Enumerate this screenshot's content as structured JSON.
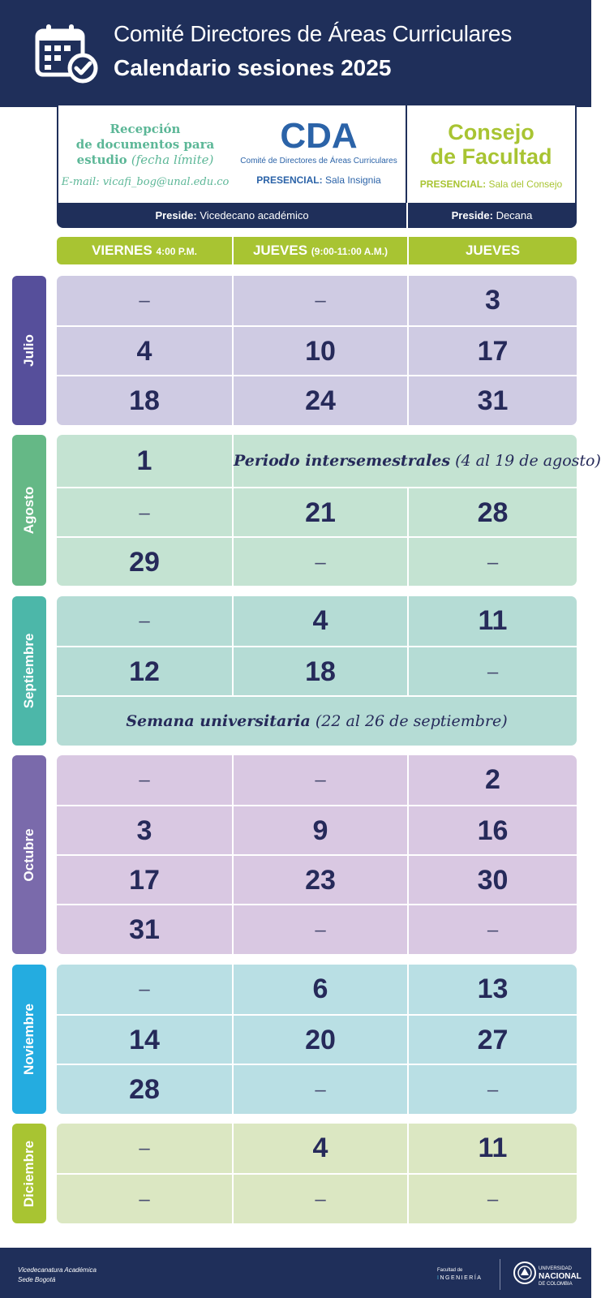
{
  "header": {
    "title": "Comité Directores de Áreas Curriculares",
    "subtitle": "Calendario sesiones 2025",
    "icon": "calendar-check-icon"
  },
  "info": {
    "reception": {
      "line1": "Recepción",
      "line2": "de documentos para",
      "line3_bold": "estudio",
      "line3_italic": "(fecha límite)",
      "email": "E-mail: vicafi_bog@unal.edu.co"
    },
    "cda": {
      "acronym": "CDA",
      "name": "Comité de Directores de Áreas Curriculares",
      "mode_label": "PRESENCIAL:",
      "place": "Sala Insignia"
    },
    "consejo": {
      "line1": "Consejo",
      "line2": "de Facultad",
      "mode_label": "PRESENCIAL:",
      "place": "Sala del Consejo"
    },
    "preside": {
      "label": "Preside:",
      "left": "Vicedecano académico",
      "right": "Decana"
    }
  },
  "columns": {
    "c1_main": "VIERNES",
    "c1_small": "4:00 P.M.",
    "c2_main": "JUEVES",
    "c2_small": "(9:00-11:00 A.M.)",
    "c3_main": "JUEVES"
  },
  "months": [
    {
      "name": "Julio",
      "rows": [
        [
          "–",
          "–",
          "3"
        ],
        [
          "4",
          "10",
          "17"
        ],
        [
          "18",
          "24",
          "31"
        ]
      ]
    },
    {
      "name": "Agosto",
      "first_value": "1",
      "note_bold": "Periodo intersemestrales",
      "note_rest": "(4 al 19 de agosto)",
      "rows": [
        [
          "–",
          "21",
          "28"
        ],
        [
          "29",
          "–",
          "–"
        ]
      ]
    },
    {
      "name": "Septiembre",
      "rows": [
        [
          "–",
          "4",
          "11"
        ],
        [
          "12",
          "18",
          "–"
        ]
      ],
      "note_bold": "Semana universitaria",
      "note_rest": "(22 al 26 de septiembre)"
    },
    {
      "name": "Octubre",
      "rows": [
        [
          "–",
          "–",
          "2"
        ],
        [
          "3",
          "9",
          "16"
        ],
        [
          "17",
          "23",
          "30"
        ],
        [
          "31",
          "–",
          "–"
        ]
      ]
    },
    {
      "name": "Noviembre",
      "rows": [
        [
          "–",
          "6",
          "13"
        ],
        [
          "14",
          "20",
          "27"
        ],
        [
          "28",
          "–",
          "–"
        ]
      ]
    },
    {
      "name": "Diciembre",
      "rows": [
        [
          "–",
          "4",
          "11"
        ],
        [
          "–",
          "–",
          "–"
        ]
      ]
    }
  ],
  "footer": {
    "left_line1": "Vicedecanatura Académica",
    "left_line2": "Sede Bogotá",
    "faculty_small": "Facultad de",
    "faculty_first": "I",
    "faculty_rest": "NGENIERÍA",
    "un_small": "UNIVERSIDAD",
    "un_big": "NACIONAL",
    "un_country": "DE COLOMBIA"
  },
  "colors": {
    "navy": "#1f2f5a",
    "green": "#a8c432",
    "julio": "#564f9b",
    "julio_bg": "#cfcbe3",
    "agosto": "#65b886",
    "agosto_bg": "#c4e3d2",
    "septiembre": "#4cb7a9",
    "septiembre_bg": "#b5dcd5",
    "octubre": "#7a6aab",
    "octubre_bg": "#d9c8e2",
    "noviembre": "#24ace0",
    "noviembre_bg": "#b9dfe4",
    "diciembre": "#a8c432",
    "diciembre_bg": "#dbe7c2"
  }
}
